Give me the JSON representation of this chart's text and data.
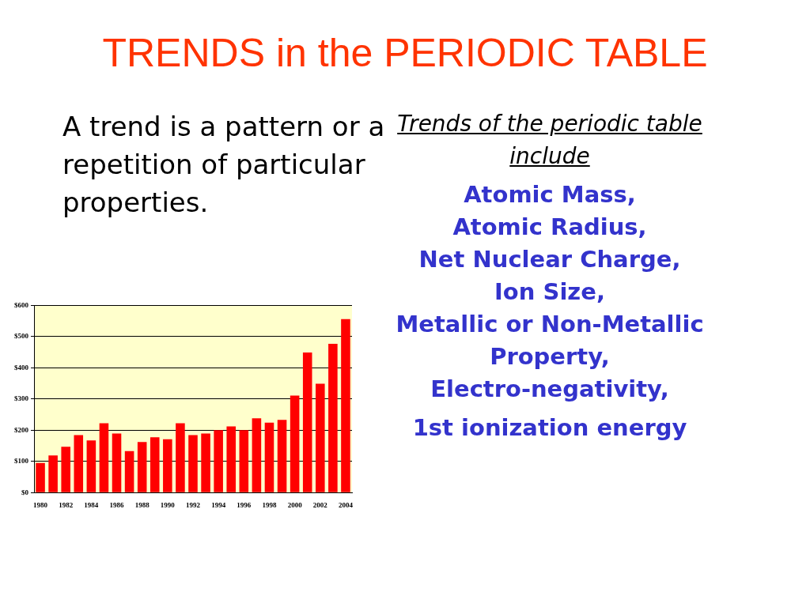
{
  "chart_data": {
    "type": "bar",
    "title": "TRENDS in the PERIODIC TABLE",
    "annotations": [
      "A trend is a pattern or a repetition of particular properties.",
      "Trends of the periodic table include",
      "Atomic Mass,",
      "Atomic Radius,",
      "Net Nuclear Charge,",
      "Ion Size,",
      "Metallic or Non-Metallic Property,",
      "Electro-negativity,",
      "1st ionization energy"
    ],
    "categories": [
      "1980",
      null,
      "1982",
      null,
      "1984",
      null,
      "1986",
      null,
      "1988",
      null,
      "1990",
      null,
      "1992",
      null,
      "1994",
      null,
      "1996",
      null,
      "1998",
      null,
      "2000",
      null,
      "2002",
      null,
      "2004"
    ],
    "values": [
      95,
      119,
      147,
      184,
      167,
      222,
      189,
      133,
      162,
      177,
      171,
      222,
      184,
      189,
      200,
      212,
      200,
      238,
      224,
      233,
      311,
      449,
      349,
      477,
      556
    ],
    "color": "#ff0000",
    "ylim": [
      0,
      600
    ],
    "yticks": [
      {
        "value": 0,
        "label": "$0"
      },
      {
        "value": 100,
        "label": "$100"
      },
      {
        "value": 200,
        "label": "$200"
      },
      {
        "value": 300,
        "label": "$300"
      },
      {
        "value": 400,
        "label": "$400"
      },
      {
        "value": 500,
        "label": "$500"
      },
      {
        "value": 600,
        "label": "$600"
      }
    ],
    "grid": "y"
  }
}
